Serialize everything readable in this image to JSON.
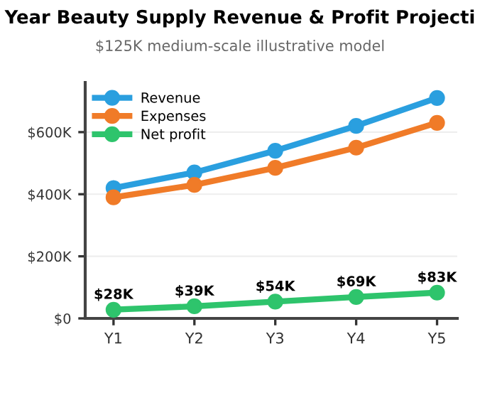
{
  "chart_data": {
    "type": "line",
    "title": "Year Beauty Supply Revenue & Profit Projecti",
    "subtitle": "$125K medium-scale illustrative model",
    "categories": [
      "Y1",
      "Y2",
      "Y3",
      "Y4",
      "Y5"
    ],
    "series": [
      {
        "name": "Revenue",
        "color": "#2a9fdf",
        "values": [
          420000,
          470000,
          540000,
          620000,
          710000
        ]
      },
      {
        "name": "Expenses",
        "color": "#f07b28",
        "values": [
          390000,
          430000,
          485000,
          550000,
          630000
        ]
      },
      {
        "name": "Net profit",
        "color": "#2ec46c",
        "values": [
          28000,
          39000,
          54000,
          69000,
          83000
        ],
        "value_labels": [
          "$28K",
          "$39K",
          "$54K",
          "$69K",
          "$83K"
        ]
      }
    ],
    "ylim": [
      0,
      760000
    ],
    "yticks": [
      {
        "value": 0,
        "label": "$0"
      },
      {
        "value": 200000,
        "label": "$200K"
      },
      {
        "value": 400000,
        "label": "$400K"
      },
      {
        "value": 600000,
        "label": "$600K"
      }
    ],
    "grid": "y",
    "legend": "top left",
    "marker": "circle",
    "line_style": "solid"
  }
}
